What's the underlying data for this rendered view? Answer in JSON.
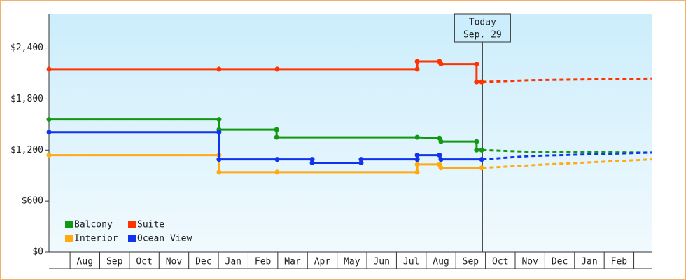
{
  "chart_data": {
    "type": "step-line",
    "ylim": [
      0,
      2800
    ],
    "yticks": [
      {
        "value": 0,
        "label": "$0"
      },
      {
        "value": 600,
        "label": "$600"
      },
      {
        "value": 1200,
        "label": "$1,200"
      },
      {
        "value": 1800,
        "label": "$1,800"
      },
      {
        "value": 2400,
        "label": "$2,400"
      }
    ],
    "xlim": [
      -0.71,
      19.6
    ],
    "xticks": [
      {
        "value": 0.5,
        "label": "Aug"
      },
      {
        "value": 1.5,
        "label": "Sep"
      },
      {
        "value": 2.5,
        "label": "Oct"
      },
      {
        "value": 3.5,
        "label": "Nov"
      },
      {
        "value": 4.5,
        "label": "Dec"
      },
      {
        "value": 5.5,
        "label": "Jan"
      },
      {
        "value": 6.5,
        "label": "Feb"
      },
      {
        "value": 7.5,
        "label": "Mar"
      },
      {
        "value": 8.5,
        "label": "Apr"
      },
      {
        "value": 9.5,
        "label": "May"
      },
      {
        "value": 10.5,
        "label": "Jun"
      },
      {
        "value": 11.5,
        "label": "Jul"
      },
      {
        "value": 12.5,
        "label": "Aug"
      },
      {
        "value": 13.5,
        "label": "Sep"
      },
      {
        "value": 14.5,
        "label": "Oct"
      },
      {
        "value": 15.5,
        "label": "Nov"
      },
      {
        "value": 16.5,
        "label": "Dec"
      },
      {
        "value": 17.5,
        "label": "Jan"
      },
      {
        "value": 18.5,
        "label": "Feb"
      }
    ],
    "annotation": {
      "x": 13.9,
      "lines": [
        "Today",
        "Sep. 29"
      ]
    },
    "series": [
      {
        "name": "Balcony",
        "color": "#119911",
        "x": [
          -0.71,
          5.02,
          5.02,
          6.96,
          6.96,
          11.7,
          12.45,
          12.5,
          13.7,
          13.7,
          13.87
        ],
        "values": [
          1560,
          1560,
          1440,
          1440,
          1350,
          1350,
          1340,
          1300,
          1300,
          1200,
          1200
        ],
        "forecast_x": [
          13.9,
          15.5,
          19.6
        ],
        "forecast_values": [
          1200,
          1180,
          1170
        ]
      },
      {
        "name": "Suite",
        "color": "#ff3300",
        "x": [
          -0.71,
          5.02,
          6.98,
          11.7,
          11.7,
          12.45,
          12.5,
          13.7,
          13.7,
          13.87
        ],
        "values": [
          2150,
          2150,
          2150,
          2150,
          2240,
          2240,
          2210,
          2210,
          2000,
          2000
        ],
        "forecast_x": [
          13.9,
          15.5,
          19.6
        ],
        "forecast_values": [
          2000,
          2020,
          2040
        ]
      },
      {
        "name": "Interior",
        "color": "#ffaa11",
        "x": [
          -0.71,
          5.02,
          5.02,
          6.98,
          11.7,
          11.7,
          12.45,
          12.5,
          13.87
        ],
        "values": [
          1140,
          1140,
          940,
          940,
          940,
          1030,
          1030,
          990,
          990
        ],
        "forecast_x": [
          13.9,
          16.0,
          19.6
        ],
        "forecast_values": [
          990,
          1030,
          1090
        ]
      },
      {
        "name": "Ocean View",
        "color": "#1133ee",
        "x": [
          -0.71,
          5.02,
          5.02,
          6.98,
          8.16,
          8.16,
          9.81,
          9.81,
          11.7,
          11.7,
          12.45,
          12.5,
          13.87
        ],
        "values": [
          1410,
          1410,
          1090,
          1090,
          1090,
          1050,
          1050,
          1090,
          1090,
          1140,
          1140,
          1090,
          1090
        ],
        "forecast_x": [
          13.9,
          15.5,
          19.6
        ],
        "forecast_values": [
          1090,
          1130,
          1170
        ]
      }
    ]
  }
}
